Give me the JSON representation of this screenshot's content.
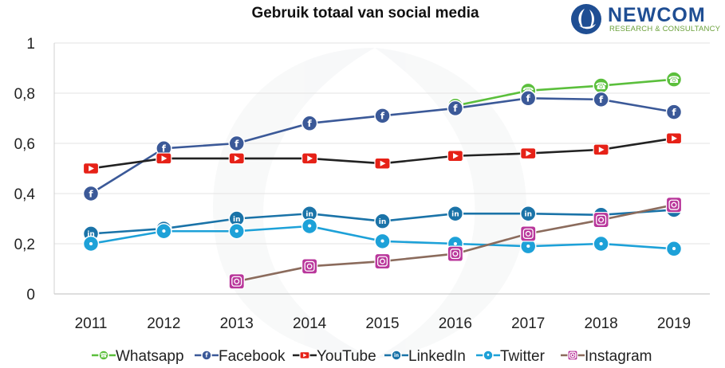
{
  "title": "Gebruik totaal van social media",
  "logo": {
    "name": "NEWCOM",
    "tagline": "RESEARCH & CONSULTANCY"
  },
  "chart_data": {
    "type": "line",
    "title": "Gebruik totaal van social media",
    "xlabel": "",
    "ylabel": "",
    "ylim": [
      0,
      1
    ],
    "yticks": [
      "0",
      "0,2",
      "0,4",
      "0,6",
      "0,8",
      "1"
    ],
    "yticks_values": [
      0,
      0.2,
      0.4,
      0.6,
      0.8,
      1
    ],
    "categories": [
      "2011",
      "2012",
      "2013",
      "2014",
      "2015",
      "2016",
      "2017",
      "2018",
      "2019"
    ],
    "grid": true,
    "legend": "bottom",
    "series": [
      {
        "name": "Whatsapp",
        "color": "#5bbf3c",
        "icon": "whatsapp-icon",
        "values": [
          null,
          null,
          null,
          null,
          null,
          0.75,
          0.81,
          0.83,
          0.855
        ]
      },
      {
        "name": "Facebook",
        "color": "#3b5998",
        "icon": "facebook-icon",
        "values": [
          0.4,
          0.58,
          0.6,
          0.68,
          0.71,
          0.74,
          0.78,
          0.775,
          0.725
        ]
      },
      {
        "name": "YouTube",
        "color": "#222222",
        "icon": "youtube-icon",
        "values": [
          0.5,
          0.54,
          0.54,
          0.54,
          0.52,
          0.55,
          0.56,
          0.575,
          0.62
        ]
      },
      {
        "name": "LinkedIn",
        "color": "#1a73a8",
        "icon": "linkedin-icon",
        "values": [
          0.24,
          0.26,
          0.3,
          0.32,
          0.29,
          0.32,
          0.32,
          0.315,
          0.335
        ]
      },
      {
        "name": "Twitter",
        "color": "#1da1d8",
        "icon": "twitter-icon",
        "values": [
          0.2,
          0.25,
          0.25,
          0.27,
          0.21,
          0.2,
          0.19,
          0.2,
          0.18
        ]
      },
      {
        "name": "Instagram",
        "color": "#8b6b5c",
        "icon": "instagram-icon",
        "values": [
          null,
          null,
          0.05,
          0.11,
          0.13,
          0.16,
          0.24,
          0.295,
          0.355
        ]
      }
    ]
  }
}
